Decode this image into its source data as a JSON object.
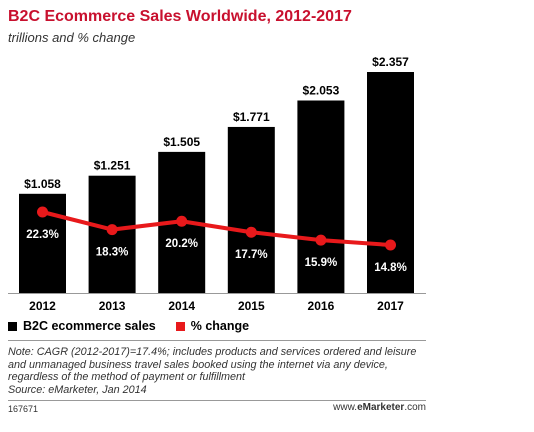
{
  "header": {
    "title": "B2C Ecommerce Sales Worldwide, 2012-2017",
    "subtitle": "trillions and % change"
  },
  "legend": {
    "bar_label": "B2C ecommerce sales",
    "line_label": "% change"
  },
  "footer": {
    "note": "Note: CAGR (2012-2017)=17.4%; includes products and services ordered and leisure and unmanaged business travel sales booked using the internet via any device, regardless of the method of payment or fulfillment",
    "source": "Source: eMarketer, Jan 2014",
    "chart_id": "167671",
    "brand_prefix": "www.",
    "brand_name": "eMarketer",
    "brand_suffix": ".com"
  },
  "colors": {
    "bar": "#000000",
    "line": "#e8191b",
    "title": "#c8102e"
  },
  "chart_data": {
    "type": "bar",
    "categories": [
      "2012",
      "2013",
      "2014",
      "2015",
      "2016",
      "2017"
    ],
    "series": [
      {
        "name": "B2C ecommerce sales",
        "type": "bar",
        "values": [
          1.058,
          1.251,
          1.505,
          1.771,
          2.053,
          2.357
        ],
        "labels": [
          "$1.058",
          "$1.251",
          "$1.505",
          "$1.771",
          "$2.053",
          "$2.357"
        ]
      },
      {
        "name": "% change",
        "type": "line",
        "values": [
          22.3,
          18.3,
          20.2,
          17.7,
          15.9,
          14.8
        ],
        "labels": [
          "22.3%",
          "18.3%",
          "20.2%",
          "17.7%",
          "15.9%",
          "14.8%"
        ]
      }
    ],
    "title": "B2C Ecommerce Sales Worldwide, 2012-2017",
    "subtitle": "trillions and % change",
    "ylim": [
      0,
      2.357
    ],
    "grid": false,
    "legend_position": "bottom-left"
  }
}
